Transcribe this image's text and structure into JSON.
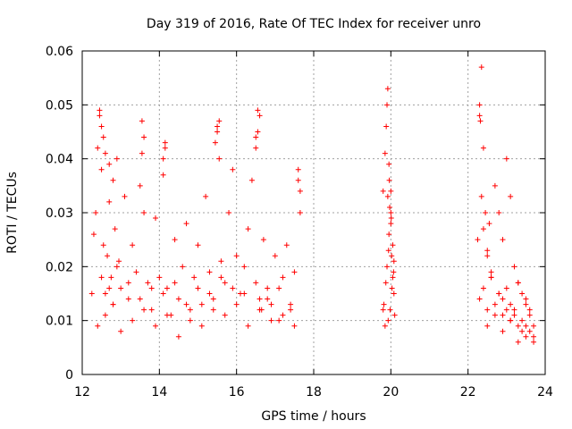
{
  "chart_data": {
    "type": "scatter",
    "title": "Day 319 of 2016, Rate Of TEC Index for receiver unro",
    "xlabel": "GPS time / hours",
    "ylabel": "ROTI / TECUs",
    "xlim": [
      12,
      24
    ],
    "ylim": [
      0,
      0.06
    ],
    "xticks": [
      12,
      14,
      16,
      18,
      20,
      22,
      24
    ],
    "xtick_labels": [
      "12",
      "14",
      "16",
      "18",
      "20",
      "22",
      "24"
    ],
    "yticks": [
      0,
      0.01,
      0.02,
      0.03,
      0.04,
      0.05,
      0.06
    ],
    "ytick_labels": [
      "0",
      "0.01",
      "0.02",
      "0.03",
      "0.04",
      "0.05",
      "0.06"
    ],
    "grid": true,
    "marker": "+",
    "marker_color": "#ff0000",
    "series": [
      {
        "name": "ROTI",
        "x": [
          12.25,
          12.3,
          12.35,
          12.4,
          12.45,
          12.5,
          12.55,
          12.6,
          12.65,
          12.7,
          12.75,
          12.8,
          12.85,
          12.9,
          12.95,
          13.0,
          13.1,
          13.2,
          13.3,
          13.4,
          13.5,
          13.55,
          13.6,
          13.7,
          13.8,
          13.9,
          14.0,
          14.1,
          14.15,
          14.2,
          14.3,
          14.4,
          14.5,
          14.6,
          14.7,
          14.8,
          14.9,
          15.0,
          15.1,
          15.2,
          15.3,
          15.4,
          15.5,
          15.55,
          15.6,
          15.7,
          15.8,
          15.9,
          16.0,
          16.1,
          16.2,
          16.3,
          16.4,
          16.5,
          16.55,
          16.6,
          16.65,
          16.7,
          16.8,
          16.9,
          17.0,
          17.1,
          17.2,
          17.3,
          17.4,
          17.5,
          17.6,
          17.65,
          12.4,
          12.6,
          12.8,
          13.0,
          13.3,
          13.6,
          13.9,
          14.2,
          14.5,
          14.8,
          15.1,
          15.4,
          15.7,
          16.0,
          16.3,
          16.6,
          16.9,
          17.2,
          17.5,
          12.5,
          12.7,
          12.9,
          13.2,
          13.5,
          13.8,
          14.1,
          14.4,
          14.7,
          15.0,
          15.3,
          15.6,
          15.9,
          16.2,
          16.5,
          16.8,
          17.1,
          17.4,
          12.45,
          12.5,
          12.55,
          12.6,
          12.7,
          12.8,
          13.55,
          13.6,
          14.1,
          14.15,
          15.45,
          15.5,
          15.55,
          16.5,
          16.55,
          16.6,
          17.6,
          17.65,
          19.8,
          19.85,
          19.88,
          19.9,
          19.92,
          19.95,
          19.97,
          20.0,
          20.02,
          20.05,
          20.08,
          20.1,
          19.82,
          19.9,
          19.95,
          20.0,
          20.05,
          19.85,
          19.93,
          19.98,
          20.03,
          20.07,
          19.92,
          19.96,
          20.0,
          19.8,
          19.87,
          19.94,
          20.01,
          20.08,
          22.25,
          22.3,
          22.35,
          22.4,
          22.45,
          22.5,
          22.55,
          22.6,
          22.7,
          22.8,
          22.9,
          23.0,
          23.1,
          23.2,
          23.3,
          23.4,
          23.5,
          23.6,
          23.7,
          22.3,
          22.32,
          22.35,
          22.4,
          22.5,
          22.6,
          22.8,
          22.9,
          23.0,
          23.1,
          23.2,
          23.3,
          23.4,
          23.5,
          23.6,
          23.7,
          22.3,
          22.4,
          22.5,
          22.6,
          22.7,
          22.8,
          22.9,
          23.0,
          23.1,
          23.2,
          23.3,
          23.4,
          23.5,
          23.6,
          22.5,
          22.7,
          22.9,
          23.1,
          23.3,
          23.5,
          23.7
        ],
        "y": [
          0.015,
          0.026,
          0.03,
          0.042,
          0.049,
          0.038,
          0.024,
          0.015,
          0.022,
          0.032,
          0.018,
          0.013,
          0.027,
          0.04,
          0.021,
          0.016,
          0.033,
          0.014,
          0.024,
          0.019,
          0.035,
          0.047,
          0.03,
          0.017,
          0.012,
          0.029,
          0.018,
          0.037,
          0.043,
          0.016,
          0.011,
          0.025,
          0.014,
          0.02,
          0.028,
          0.012,
          0.018,
          0.024,
          0.013,
          0.033,
          0.019,
          0.014,
          0.045,
          0.047,
          0.021,
          0.017,
          0.03,
          0.038,
          0.022,
          0.015,
          0.02,
          0.027,
          0.036,
          0.044,
          0.049,
          0.014,
          0.012,
          0.025,
          0.016,
          0.013,
          0.022,
          0.01,
          0.018,
          0.024,
          0.012,
          0.019,
          0.038,
          0.03,
          0.009,
          0.011,
          0.013,
          0.008,
          0.01,
          0.012,
          0.009,
          0.011,
          0.007,
          0.01,
          0.009,
          0.012,
          0.011,
          0.013,
          0.009,
          0.012,
          0.01,
          0.011,
          0.009,
          0.018,
          0.016,
          0.02,
          0.017,
          0.014,
          0.016,
          0.015,
          0.017,
          0.013,
          0.016,
          0.015,
          0.018,
          0.016,
          0.015,
          0.017,
          0.014,
          0.016,
          0.013,
          0.048,
          0.046,
          0.044,
          0.041,
          0.039,
          0.036,
          0.041,
          0.044,
          0.04,
          0.042,
          0.043,
          0.046,
          0.04,
          0.042,
          0.045,
          0.048,
          0.036,
          0.034,
          0.034,
          0.041,
          0.046,
          0.05,
          0.053,
          0.039,
          0.031,
          0.028,
          0.022,
          0.018,
          0.015,
          0.011,
          0.013,
          0.02,
          0.026,
          0.03,
          0.024,
          0.009,
          0.01,
          0.012,
          0.016,
          0.019,
          0.033,
          0.036,
          0.034,
          0.012,
          0.017,
          0.023,
          0.029,
          0.021,
          0.025,
          0.05,
          0.057,
          0.042,
          0.03,
          0.022,
          0.028,
          0.019,
          0.035,
          0.03,
          0.025,
          0.04,
          0.033,
          0.02,
          0.017,
          0.015,
          0.013,
          0.012,
          0.009,
          0.048,
          0.047,
          0.033,
          0.027,
          0.023,
          0.018,
          0.015,
          0.014,
          0.012,
          0.01,
          0.011,
          0.009,
          0.008,
          0.007,
          0.008,
          0.006,
          0.014,
          0.016,
          0.012,
          0.018,
          0.013,
          0.015,
          0.011,
          0.016,
          0.013,
          0.012,
          0.017,
          0.01,
          0.014,
          0.011,
          0.009,
          0.011,
          0.008,
          0.01,
          0.006,
          0.009,
          0.007
        ]
      }
    ]
  }
}
